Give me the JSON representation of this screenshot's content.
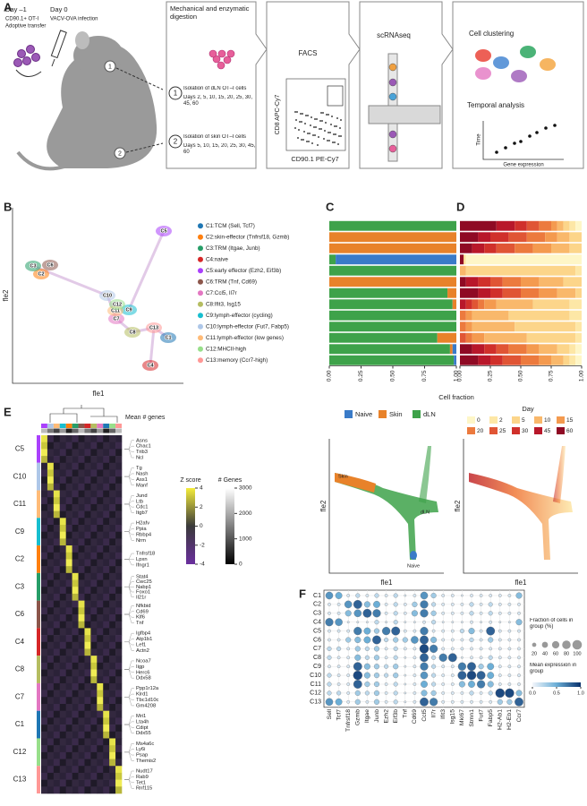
{
  "panels": {
    "a": "A",
    "b": "B",
    "c": "C",
    "d": "D",
    "e": "E",
    "f": "F"
  },
  "panel_a": {
    "day_minus1": "Day –1",
    "cd901": "CD90.1+ OT-I",
    "transfer": "Adoptive transfer",
    "day0": "Day 0",
    "infection": "VACV-OVA infection",
    "site1": "1",
    "site2": "2",
    "digestion": "Mechanical and enzymatic digestion",
    "dln_title": "Isolation of dLN OT–I cells",
    "dln_days": "Days 2, 5, 10, 15, 20, 25, 30, 45, 60",
    "skin_title": "Isolation of skin OT–I cells",
    "skin_days": "Days 5, 10, 15, 20, 25, 30, 45, 60",
    "facs": "FACS",
    "facs_y": "CD8 APC-Cy7",
    "facs_x": "CD90.1 PE-Cy7",
    "scrna": "scRNAseq",
    "clustering": "Cell clustering",
    "temporal": "Temporal analysis",
    "time": "Time",
    "gene_expr": "Gene expression"
  },
  "clusters": [
    {
      "id": "C1",
      "name": "C1:TCM (Sell, Tcf7)",
      "color": "#1f77b4"
    },
    {
      "id": "C2",
      "name": "C2:skin-effector (Tnfrsf18, Gzmb)",
      "color": "#ff7f0e"
    },
    {
      "id": "C3",
      "name": "C3:TRM (Itgae, Junb)",
      "color": "#279e68"
    },
    {
      "id": "C4",
      "name": "C4:naive",
      "color": "#d62728"
    },
    {
      "id": "C5",
      "name": "C5:early effector (Ezh2, Eif3b)",
      "color": "#aa40fc"
    },
    {
      "id": "C6",
      "name": "C6:TRM (Tnf, Cd69)",
      "color": "#8c564b"
    },
    {
      "id": "C7",
      "name": "C7:Ccl5, Il7r",
      "color": "#e377c2"
    },
    {
      "id": "C8",
      "name": "C8:Ifit3, Isg15",
      "color": "#b5bd61"
    },
    {
      "id": "C9",
      "name": "C9:lymph-effector (cycling)",
      "color": "#17becf"
    },
    {
      "id": "C10",
      "name": "C10:lymph-effector (Fut7, Fabp5)",
      "color": "#aec7e8"
    },
    {
      "id": "C11",
      "name": "C11:lymph-effector (low genes)",
      "color": "#ffbb78"
    },
    {
      "id": "C12",
      "name": "C12:MHCII-high",
      "color": "#98df8a"
    },
    {
      "id": "C13",
      "name": "C13:memory (Ccr7-high)",
      "color": "#ff9896"
    }
  ],
  "panel_b": {
    "x_label": "fle1",
    "y_label": "fle2"
  },
  "chart_data": [
    {
      "type": "bar",
      "orientation": "horizontal",
      "stacked": true,
      "x_label": "Cell fraction",
      "xlim": [
        0,
        1
      ],
      "xticks": [
        {
          "value": 0,
          "label": "0.00"
        },
        {
          "value": 0.25,
          "label": "0.25"
        },
        {
          "value": 0.5,
          "label": "0.50"
        },
        {
          "value": 0.75,
          "label": "0.75"
        },
        {
          "value": 1,
          "label": "1.00"
        }
      ],
      "series": [
        {
          "name": "Naive",
          "color": "#3a7bc8",
          "values": [
            0,
            0,
            0,
            0.95,
            0,
            0,
            0,
            0,
            0,
            0,
            0,
            0.03,
            0.02
          ]
        },
        {
          "name": "Skin",
          "color": "#e8822a",
          "values": [
            0,
            1,
            1,
            0,
            0,
            1,
            0.07,
            0.03,
            0,
            0,
            0.15,
            0.02,
            0
          ]
        },
        {
          "name": "dLN",
          "color": "#3ea24a",
          "values": [
            1,
            0,
            0,
            0.05,
            1,
            0,
            0.93,
            0.97,
            1,
            1,
            0.85,
            0.95,
            0.98
          ]
        }
      ]
    },
    {
      "type": "bar",
      "orientation": "horizontal",
      "stacked": true,
      "legend_title": "Day",
      "xlim": [
        0,
        1
      ],
      "xticks": [
        {
          "value": 0,
          "label": "0.00"
        },
        {
          "value": 0.25,
          "label": "0.25"
        },
        {
          "value": 0.5,
          "label": "0.50"
        },
        {
          "value": 0.75,
          "label": "0.75"
        },
        {
          "value": 1,
          "label": "1.00"
        }
      ],
      "series": [
        {
          "name": "0",
          "color": "#fef6c7",
          "values": [
            0.05,
            0,
            0,
            0.95,
            0,
            0,
            0,
            0,
            0,
            0,
            0,
            0.05,
            0.05
          ]
        },
        {
          "name": "2",
          "color": "#fde7a6",
          "values": [
            0.05,
            0,
            0,
            0.01,
            0.05,
            0,
            0,
            0.1,
            0.1,
            0.05,
            0.05,
            0.05,
            0.05
          ]
        },
        {
          "name": "5",
          "color": "#fcd58a",
          "values": [
            0.05,
            0.1,
            0.1,
            0.01,
            0.9,
            0.15,
            0.05,
            0.3,
            0.5,
            0.5,
            0.4,
            0.1,
            0.05
          ]
        },
        {
          "name": "10",
          "color": "#f9b86b",
          "values": [
            0.05,
            0.1,
            0.15,
            0,
            0.05,
            0.2,
            0.15,
            0.3,
            0.3,
            0.35,
            0.35,
            0.15,
            0.1
          ]
        },
        {
          "name": "15",
          "color": "#f49a4f",
          "values": [
            0.05,
            0.1,
            0.15,
            0,
            0,
            0.15,
            0.15,
            0.1,
            0.05,
            0.05,
            0.1,
            0.1,
            0.1
          ]
        },
        {
          "name": "20",
          "color": "#ec7a3e",
          "values": [
            0.1,
            0.15,
            0.15,
            0,
            0,
            0.15,
            0.15,
            0.05,
            0.05,
            0.05,
            0.05,
            0.15,
            0.15
          ]
        },
        {
          "name": "25",
          "color": "#e05535",
          "values": [
            0.1,
            0.15,
            0.15,
            0,
            0,
            0.1,
            0.15,
            0.05,
            0,
            0,
            0.05,
            0.1,
            0.15
          ]
        },
        {
          "name": "30",
          "color": "#d0302b",
          "values": [
            0.1,
            0.15,
            0.1,
            0,
            0,
            0.1,
            0.1,
            0.05,
            0,
            0,
            0,
            0.1,
            0.1
          ]
        },
        {
          "name": "45",
          "color": "#b8172a",
          "values": [
            0.15,
            0.1,
            0.1,
            0,
            0,
            0.1,
            0.1,
            0.05,
            0,
            0,
            0,
            0.1,
            0.1
          ]
        },
        {
          "name": "60",
          "color": "#8f0a24",
          "values": [
            0.3,
            0.15,
            0.1,
            0.03,
            0,
            0.05,
            0.15,
            0,
            0,
            0,
            0,
            0.1,
            0.15
          ]
        }
      ]
    }
  ],
  "panel_e": {
    "mean_genes": "Mean # genes",
    "zscore": {
      "title": "Z score",
      "ticks": [
        4,
        2,
        0,
        -2,
        -4
      ]
    },
    "ngenes": {
      "title": "# Genes",
      "ticks": [
        3000,
        2000,
        1000,
        0
      ]
    },
    "rows": [
      {
        "cluster": "C5",
        "genes": [
          "Asns",
          "Chac1",
          "Trib3",
          "Ncl"
        ]
      },
      {
        "cluster": "C10",
        "genes": [
          "Tg",
          "Nash",
          "Ass1",
          "Manf"
        ]
      },
      {
        "cluster": "C11",
        "genes": [
          "Jund",
          "Ltb",
          "Cdc1",
          "Itgb7"
        ]
      },
      {
        "cluster": "C9",
        "genes": [
          "H2afv",
          "Ppia",
          "Rbbp4",
          "Nrm"
        ]
      },
      {
        "cluster": "C2",
        "genes": [
          "Tnfrsf18",
          "Lpxn",
          "Ifngr1"
        ]
      },
      {
        "cluster": "C3",
        "genes": [
          "Stat4",
          "Cwc25",
          "Nabp1",
          "Foxo1",
          "Il21r"
        ]
      },
      {
        "cluster": "C6",
        "genes": [
          "Nfkbid",
          "Cd69",
          "Klf6",
          "Tnf"
        ]
      },
      {
        "cluster": "C4",
        "genes": [
          "Igfbp4",
          "Atp1b1",
          "Lef1",
          "Actn2"
        ]
      },
      {
        "cluster": "C8",
        "genes": [
          "Ncoa7",
          "Iigp",
          "Herc6",
          "Ddx58"
        ]
      },
      {
        "cluster": "C7",
        "genes": [
          "Ppp1r12a",
          "Klrd1",
          "Tbc1d10c",
          "Gm4208"
        ]
      },
      {
        "cluster": "C1",
        "genes": [
          "Mri1",
          "Lta4h",
          "Cdipt",
          "Ddx55"
        ]
      },
      {
        "cluster": "C12",
        "genes": [
          "Ms4a6c",
          "Ly6i",
          "Psap",
          "Themis2"
        ]
      },
      {
        "cluster": "C13",
        "genes": [
          "Nudt17",
          "Rab9",
          "Tet1",
          "Rnf115"
        ]
      }
    ]
  },
  "panel_f": {
    "genes": [
      "Sell",
      "Tcf7",
      "Tnfrsf18",
      "Gzmb",
      "Itgae",
      "Junb",
      "Ezh2",
      "Eif3b",
      "Tnf",
      "Cd69",
      "Ccl5",
      "Il7r",
      "Ifit3",
      "Isg15",
      "Mki67",
      "Stmn1",
      "Fut7",
      "Fabp5",
      "H2-Ab1",
      "H2-Eb1",
      "Ccr7"
    ],
    "fraction": [
      [
        60,
        50,
        10,
        20,
        10,
        20,
        10,
        20,
        5,
        10,
        60,
        30,
        10,
        10,
        5,
        10,
        10,
        10,
        10,
        10,
        40
      ],
      [
        10,
        10,
        60,
        80,
        40,
        50,
        10,
        20,
        10,
        30,
        70,
        20,
        10,
        10,
        10,
        20,
        10,
        20,
        10,
        10,
        10
      ],
      [
        10,
        10,
        40,
        60,
        80,
        70,
        10,
        20,
        10,
        40,
        70,
        30,
        10,
        10,
        10,
        20,
        10,
        20,
        10,
        10,
        10
      ],
      [
        70,
        60,
        5,
        5,
        5,
        20,
        5,
        20,
        5,
        5,
        10,
        20,
        5,
        5,
        5,
        10,
        5,
        10,
        5,
        5,
        40
      ],
      [
        10,
        10,
        10,
        70,
        50,
        30,
        70,
        80,
        10,
        10,
        70,
        10,
        10,
        10,
        20,
        40,
        10,
        80,
        10,
        10,
        10
      ],
      [
        10,
        10,
        30,
        40,
        50,
        80,
        20,
        30,
        30,
        60,
        80,
        40,
        10,
        10,
        10,
        20,
        10,
        30,
        10,
        10,
        10
      ],
      [
        20,
        20,
        10,
        30,
        20,
        30,
        10,
        20,
        10,
        10,
        90,
        70,
        10,
        10,
        10,
        10,
        10,
        10,
        10,
        10,
        10
      ],
      [
        20,
        10,
        10,
        40,
        20,
        30,
        10,
        20,
        5,
        10,
        80,
        20,
        70,
        80,
        5,
        10,
        10,
        20,
        10,
        10,
        10
      ],
      [
        10,
        10,
        10,
        80,
        40,
        30,
        20,
        30,
        5,
        10,
        70,
        20,
        10,
        10,
        70,
        80,
        30,
        50,
        10,
        10,
        10
      ],
      [
        20,
        10,
        10,
        90,
        40,
        30,
        20,
        30,
        5,
        10,
        60,
        20,
        10,
        10,
        80,
        90,
        80,
        50,
        10,
        10,
        10
      ],
      [
        20,
        10,
        10,
        80,
        30,
        30,
        10,
        20,
        5,
        10,
        50,
        20,
        10,
        10,
        40,
        50,
        70,
        40,
        10,
        10,
        10
      ],
      [
        20,
        20,
        10,
        30,
        20,
        30,
        10,
        20,
        5,
        10,
        40,
        30,
        10,
        10,
        10,
        20,
        10,
        20,
        90,
        90,
        40
      ],
      [
        60,
        50,
        10,
        30,
        10,
        30,
        10,
        20,
        5,
        10,
        80,
        70,
        10,
        10,
        10,
        10,
        10,
        10,
        30,
        30,
        80
      ]
    ],
    "expression": [
      [
        0.6,
        0.5,
        0.1,
        0.2,
        0.1,
        0.2,
        0.1,
        0.2,
        0.1,
        0.1,
        0.6,
        0.3,
        0.1,
        0.1,
        0.1,
        0.1,
        0.1,
        0.1,
        0.1,
        0.1,
        0.4
      ],
      [
        0.1,
        0.1,
        0.6,
        0.8,
        0.4,
        0.5,
        0.1,
        0.2,
        0.1,
        0.3,
        0.7,
        0.2,
        0.1,
        0.1,
        0.1,
        0.2,
        0.1,
        0.2,
        0.1,
        0.1,
        0.1
      ],
      [
        0.1,
        0.1,
        0.4,
        0.6,
        0.8,
        0.7,
        0.1,
        0.2,
        0.1,
        0.4,
        0.7,
        0.3,
        0.1,
        0.1,
        0.1,
        0.2,
        0.1,
        0.2,
        0.1,
        0.1,
        0.1
      ],
      [
        0.7,
        0.6,
        0.1,
        0.1,
        0.1,
        0.2,
        0.1,
        0.2,
        0.1,
        0.1,
        0.1,
        0.2,
        0.1,
        0.1,
        0.1,
        0.1,
        0.1,
        0.1,
        0.1,
        0.1,
        0.4
      ],
      [
        0.1,
        0.1,
        0.1,
        0.7,
        0.5,
        0.3,
        0.7,
        0.8,
        0.1,
        0.1,
        0.7,
        0.1,
        0.1,
        0.1,
        0.2,
        0.4,
        0.1,
        0.8,
        0.1,
        0.1,
        0.1
      ],
      [
        0.1,
        0.1,
        0.3,
        0.4,
        0.5,
        0.8,
        0.2,
        0.3,
        0.3,
        0.6,
        0.8,
        0.4,
        0.1,
        0.1,
        0.1,
        0.2,
        0.1,
        0.3,
        0.1,
        0.1,
        0.1
      ],
      [
        0.2,
        0.2,
        0.1,
        0.3,
        0.2,
        0.3,
        0.1,
        0.2,
        0.1,
        0.1,
        0.9,
        0.7,
        0.1,
        0.1,
        0.1,
        0.1,
        0.1,
        0.1,
        0.1,
        0.1,
        0.1
      ],
      [
        0.2,
        0.1,
        0.1,
        0.4,
        0.2,
        0.3,
        0.1,
        0.2,
        0.1,
        0.1,
        0.8,
        0.2,
        0.7,
        0.8,
        0.1,
        0.1,
        0.1,
        0.2,
        0.1,
        0.1,
        0.1
      ],
      [
        0.1,
        0.1,
        0.1,
        0.8,
        0.4,
        0.3,
        0.2,
        0.3,
        0.1,
        0.1,
        0.7,
        0.2,
        0.1,
        0.1,
        0.7,
        0.8,
        0.3,
        0.5,
        0.1,
        0.1,
        0.1
      ],
      [
        0.2,
        0.1,
        0.1,
        0.9,
        0.4,
        0.3,
        0.2,
        0.3,
        0.1,
        0.1,
        0.6,
        0.2,
        0.1,
        0.1,
        0.8,
        0.9,
        0.8,
        0.5,
        0.1,
        0.1,
        0.1
      ],
      [
        0.2,
        0.1,
        0.1,
        0.8,
        0.3,
        0.3,
        0.1,
        0.2,
        0.1,
        0.1,
        0.5,
        0.2,
        0.1,
        0.1,
        0.4,
        0.5,
        0.7,
        0.4,
        0.1,
        0.1,
        0.1
      ],
      [
        0.2,
        0.2,
        0.1,
        0.3,
        0.2,
        0.3,
        0.1,
        0.2,
        0.1,
        0.1,
        0.4,
        0.3,
        0.1,
        0.1,
        0.1,
        0.2,
        0.1,
        0.2,
        0.9,
        0.9,
        0.4
      ],
      [
        0.6,
        0.5,
        0.1,
        0.3,
        0.1,
        0.3,
        0.1,
        0.2,
        0.1,
        0.1,
        0.8,
        0.7,
        0.1,
        0.1,
        0.1,
        0.1,
        0.1,
        0.1,
        0.3,
        0.3,
        0.8
      ]
    ],
    "size_legend": {
      "title": "Fraction of cells in group (%)",
      "ticks": [
        20,
        40,
        60,
        80,
        100
      ]
    },
    "color_legend": {
      "title": "Mean expression in group",
      "ticks": [
        {
          "value": 0,
          "label": "0.0"
        },
        {
          "value": 0.5,
          "label": "0.5"
        },
        {
          "value": 1,
          "label": "1.0"
        }
      ]
    }
  }
}
